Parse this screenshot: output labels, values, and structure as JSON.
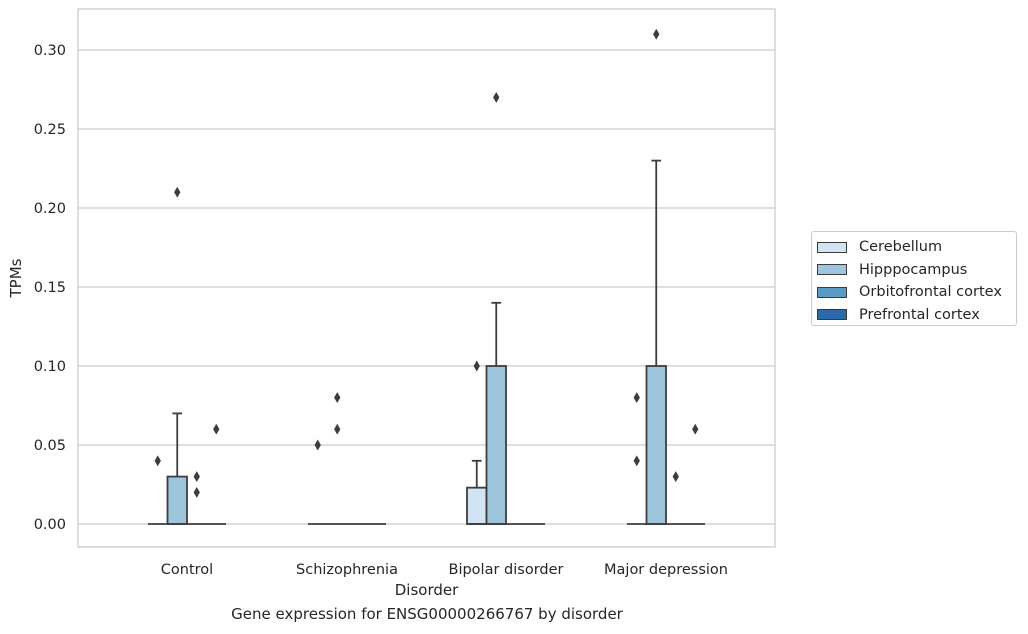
{
  "chart_data": {
    "type": "boxplot",
    "xlabel": "Disorder",
    "ylabel": "TPMs",
    "ylim": [
      -0.015,
      0.326
    ],
    "yticks": [
      0.0,
      0.05,
      0.1,
      0.15,
      0.2,
      0.25,
      0.3
    ],
    "ytick_labels": [
      "0.00",
      "0.05",
      "0.10",
      "0.15",
      "0.20",
      "0.25",
      "0.30"
    ],
    "grid": "horizontal",
    "legend_position": "right",
    "categories": [
      "Control",
      "Schizophrenia",
      "Bipolar disorder",
      "Major depression"
    ],
    "series": [
      {
        "name": "Cerebellum",
        "color": "#d2e3f3",
        "boxes": [
          {
            "q1": 0,
            "median": 0,
            "q3": 0,
            "whisker_low": 0,
            "whisker_high": 0,
            "outliers": [
              0.04
            ]
          },
          {
            "q1": 0,
            "median": 0,
            "q3": 0,
            "whisker_low": 0,
            "whisker_high": 0,
            "outliers": [
              0.05
            ]
          },
          {
            "q1": 0,
            "median": 0,
            "q3": 0.023,
            "whisker_low": 0,
            "whisker_high": 0.04,
            "outliers": [
              0.1
            ]
          },
          {
            "q1": 0,
            "median": 0,
            "q3": 0,
            "whisker_low": 0,
            "whisker_high": 0,
            "outliers": [
              0.04,
              0.08
            ]
          }
        ]
      },
      {
        "name": "Hipppocampus",
        "color": "#9dc6dd",
        "boxes": [
          {
            "q1": 0,
            "median": 0,
            "q3": 0.03,
            "whisker_low": 0,
            "whisker_high": 0.07,
            "outliers": [
              0.21
            ]
          },
          {
            "q1": 0,
            "median": 0,
            "q3": 0,
            "whisker_low": 0,
            "whisker_high": 0,
            "outliers": [
              0.06,
              0.08
            ]
          },
          {
            "q1": 0,
            "median": 0,
            "q3": 0.1,
            "whisker_low": 0,
            "whisker_high": 0.14,
            "outliers": [
              0.27
            ]
          },
          {
            "q1": 0,
            "median": 0,
            "q3": 0.1,
            "whisker_low": 0,
            "whisker_high": 0.23,
            "outliers": [
              0.31
            ]
          }
        ]
      },
      {
        "name": "Orbitofrontal cortex",
        "color": "#5a9ac8",
        "boxes": [
          {
            "q1": 0,
            "median": 0,
            "q3": 0,
            "whisker_low": 0,
            "whisker_high": 0,
            "outliers": [
              0.02,
              0.03
            ]
          },
          {
            "q1": 0,
            "median": 0,
            "q3": 0,
            "whisker_low": 0,
            "whisker_high": 0,
            "outliers": []
          },
          {
            "q1": 0,
            "median": 0,
            "q3": 0,
            "whisker_low": 0,
            "whisker_high": 0,
            "outliers": []
          },
          {
            "q1": 0,
            "median": 0,
            "q3": 0,
            "whisker_low": 0,
            "whisker_high": 0,
            "outliers": [
              0.03
            ]
          }
        ]
      },
      {
        "name": "Prefrontal cortex",
        "color": "#2a6aab",
        "boxes": [
          {
            "q1": 0,
            "median": 0,
            "q3": 0,
            "whisker_low": 0,
            "whisker_high": 0,
            "outliers": [
              0.06
            ]
          },
          {
            "q1": 0,
            "median": 0,
            "q3": 0,
            "whisker_low": 0,
            "whisker_high": 0,
            "outliers": []
          },
          {
            "q1": 0,
            "median": 0,
            "q3": 0,
            "whisker_low": 0,
            "whisker_high": 0,
            "outliers": []
          },
          {
            "q1": 0,
            "median": 0,
            "q3": 0,
            "whisker_low": 0,
            "whisker_high": 0,
            "outliers": [
              0.06
            ]
          }
        ]
      }
    ]
  },
  "caption": "Gene expression for ENSG00000266767 by disorder"
}
